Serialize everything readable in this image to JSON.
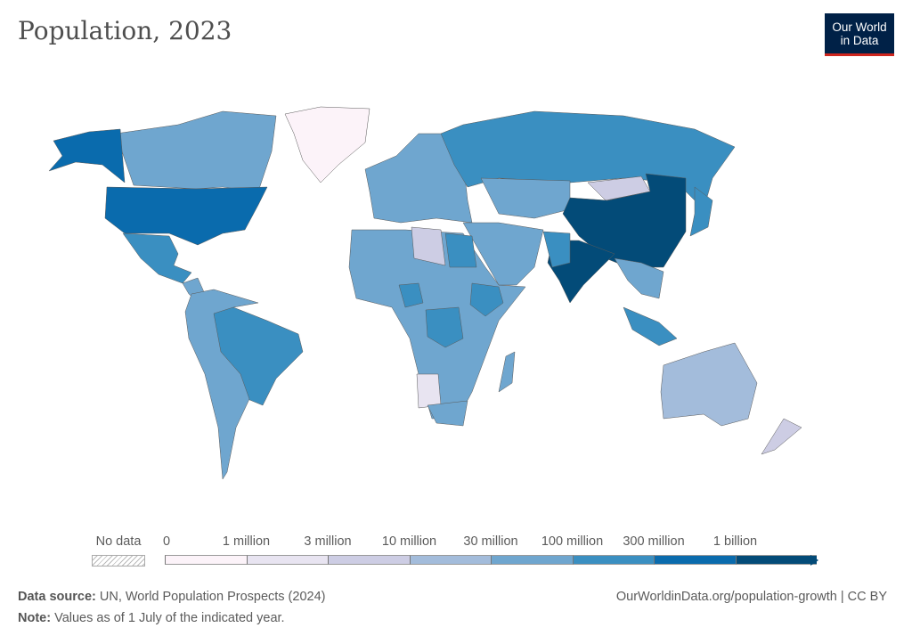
{
  "title": "Population, 2023",
  "logo": {
    "line1": "Our World",
    "line2": "in Data"
  },
  "legend": {
    "no_data_label": "No data",
    "labels": [
      "0",
      "1 million",
      "3 million",
      "10 million",
      "30 million",
      "100 million",
      "300 million",
      "1 billion"
    ],
    "colors": [
      "#fcf3f9",
      "#e8e4f1",
      "#cdcde4",
      "#a3bcdb",
      "#6fa6cf",
      "#3a8fc1",
      "#0a6bad",
      "#034b78"
    ]
  },
  "regions": [
    {
      "name": "Greenland",
      "bin": 0
    },
    {
      "name": "Canada",
      "bin": 4
    },
    {
      "name": "Alaska (USA)",
      "bin": 6
    },
    {
      "name": "United States",
      "bin": 6
    },
    {
      "name": "Mexico",
      "bin": 5
    },
    {
      "name": "Central America",
      "bin": 4
    },
    {
      "name": "Brazil",
      "bin": 5
    },
    {
      "name": "South America (other)",
      "bin": 4
    },
    {
      "name": "Europe",
      "bin": 4
    },
    {
      "name": "Russia",
      "bin": 5
    },
    {
      "name": "Africa (other)",
      "bin": 4
    },
    {
      "name": "Nigeria",
      "bin": 5
    },
    {
      "name": "Ethiopia",
      "bin": 5
    },
    {
      "name": "DR Congo",
      "bin": 5
    },
    {
      "name": "Middle East",
      "bin": 4
    },
    {
      "name": "Kazakhstan",
      "bin": 4
    },
    {
      "name": "Mongolia",
      "bin": 2
    },
    {
      "name": "China",
      "bin": 7
    },
    {
      "name": "India",
      "bin": 7
    },
    {
      "name": "Southeast Asia",
      "bin": 4
    },
    {
      "name": "Indonesia",
      "bin": 5
    },
    {
      "name": "Japan",
      "bin": 5
    },
    {
      "name": "Australia",
      "bin": 3
    },
    {
      "name": "New Zealand",
      "bin": 2
    },
    {
      "name": "Madagascar",
      "bin": 4
    },
    {
      "name": "Namibia/Botswana",
      "bin": 1
    },
    {
      "name": "Libya",
      "bin": 2
    },
    {
      "name": "Egypt",
      "bin": 5
    },
    {
      "name": "South Africa",
      "bin": 4
    },
    {
      "name": "Pakistan",
      "bin": 5
    }
  ],
  "footer": {
    "source_label": "Data source:",
    "source": "UN, World Population Prospects (2024)",
    "note_label": "Note:",
    "note": "Values as of 1 July of the indicated year.",
    "url": "OurWorldinData.org/population-growth | CC BY"
  }
}
